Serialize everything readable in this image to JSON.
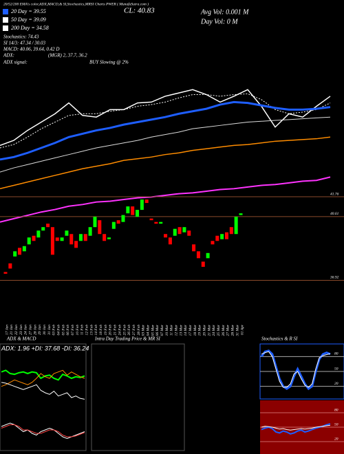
{
  "header": {
    "title": "20/52/200 EMA's color,ADX,MACD,& SI,Stochastics,MRSI Charts PWER ( MunafaSutra.com )",
    "legend": [
      {
        "text": "20 Day = 39.55",
        "color": "#1e5eff"
      },
      {
        "text": "50 Day = 39.09",
        "color": "#ffffff"
      },
      {
        "text": "200 Day = 34.58",
        "color": "#ffffff"
      }
    ],
    "stats": [
      "Stochastics: 74.43",
      "SI 14/3: 47.34 / 30.03",
      "MACD: 40.06, 39.64, 0.42 D"
    ],
    "adx_label": "ADX:",
    "adx_value": "(MGR) 2, 37.7, 36.2",
    "signal_label": "ADX signal:",
    "signal_value": "BUY Slowing @ 2%",
    "close": "CL: 40.83",
    "avg_vol": "Avg Vol: 0.001 M",
    "day_vol": "Day Vol: 0  M"
  },
  "chart_data": [
    {
      "type": "line",
      "ylim": [
        25,
        44
      ],
      "series": [
        {
          "color": "#ffffff",
          "line_width": 1.5,
          "values": [
            34.8,
            35.4,
            36.6,
            37.6,
            38.6,
            39.9,
            38.4,
            38.2,
            39.1,
            39.1,
            39.9,
            40.0,
            40.7,
            41.1,
            41.5,
            40.9,
            40.0,
            40.7,
            41.5,
            39.5,
            37.0,
            38.6,
            38.2,
            39.5,
            40.7
          ]
        },
        {
          "color": "#ffffff",
          "line_width": 1,
          "dash": true,
          "values": [
            34.5,
            34.9,
            35.8,
            36.8,
            37.6,
            38.4,
            38.6,
            38.6,
            38.9,
            39.1,
            39.5,
            39.7,
            40.0,
            40.5,
            40.9,
            40.9,
            40.7,
            40.9,
            41.0,
            40.3,
            39.1,
            38.6,
            38.8,
            39.1,
            39.9
          ]
        },
        {
          "color": "#1e5eff",
          "line_width": 3,
          "values": [
            33.1,
            33.4,
            33.9,
            34.5,
            35.1,
            35.8,
            36.2,
            36.6,
            36.9,
            37.3,
            37.6,
            37.9,
            38.2,
            38.6,
            38.9,
            39.2,
            39.7,
            40.0,
            39.9,
            39.6,
            39.3,
            39.1,
            39.1,
            39.2,
            39.4
          ]
        },
        {
          "color": "#dddddd",
          "line_width": 1,
          "values": [
            31.6,
            32.1,
            32.5,
            32.9,
            33.3,
            33.7,
            34.1,
            34.5,
            34.8,
            35.1,
            35.4,
            35.8,
            36.1,
            36.4,
            36.8,
            37.0,
            37.2,
            37.4,
            37.6,
            37.7,
            37.8,
            37.9,
            38.0,
            38.1,
            38.2
          ]
        },
        {
          "color": "#ff8c00",
          "line_width": 1.5,
          "values": [
            29.6,
            30.0,
            30.4,
            30.8,
            31.2,
            31.6,
            32.0,
            32.3,
            32.6,
            33.0,
            33.2,
            33.4,
            33.7,
            33.9,
            34.2,
            34.4,
            34.6,
            34.8,
            34.9,
            35.1,
            35.3,
            35.4,
            35.5,
            35.6,
            35.8
          ]
        },
        {
          "color": "#ff33ff",
          "line_width": 2,
          "values": [
            25.6,
            26.0,
            26.4,
            26.8,
            27.1,
            27.5,
            27.7,
            28.0,
            28.1,
            28.3,
            28.5,
            28.6,
            28.8,
            29.0,
            29.1,
            29.3,
            29.5,
            29.6,
            29.8,
            30.0,
            30.1,
            30.3,
            30.5,
            30.6,
            31.0
          ]
        }
      ]
    },
    {
      "type": "candlestick",
      "up_color": "#00ff00",
      "down_color": "#ff0000",
      "tick_color": "#8b4a2b",
      "ylim": [
        36.5,
        42
      ],
      "yticks": [
        41.76,
        40.61,
        36.92
      ],
      "categories": [
        "17 Jan",
        "21 Jan",
        "22 Jan",
        "23 Jan",
        "24 Jan",
        "27 Jan",
        "28 Jan",
        "29 Jan",
        "30 Jan",
        "31 Jan",
        "03 Feb",
        "04 Feb",
        "05 Feb",
        "06 Feb",
        "07 Feb",
        "10 Feb",
        "11 Feb",
        "12 Feb",
        "13 Feb",
        "14 Feb",
        "18 Feb",
        "19 Feb",
        "20 Feb",
        "21 Feb",
        "24 Feb",
        "25 Feb",
        "26 Feb",
        "27 Feb",
        "28 Feb",
        "03 Mar",
        "04 Mar",
        "05 Mar",
        "06 Mar",
        "07 Mar",
        "10 Mar",
        "11 Mar",
        "12 Mar",
        "13 Mar",
        "14 Mar",
        "17 Mar",
        "18 Mar",
        "19 Mar",
        "20 Mar",
        "21 Mar",
        "24 Mar",
        "25 Mar",
        "26 Mar",
        "27 Mar",
        "28 Mar",
        "31 Mar",
        "01 Apr"
      ],
      "open": [
        37.4,
        37.9,
        38.3,
        38.8,
        38.6,
        39.0,
        39.5,
        39.4,
        39.8,
        40.2,
        40.0,
        39.4,
        39.2,
        39.5,
        39.6,
        39.2,
        39.2,
        39.6,
        39.5,
        40.0,
        40.4,
        39.6,
        39.3,
        39.9,
        40.4,
        40.3,
        40.8,
        41.2,
        40.6,
        41.0,
        41.6,
        40.5,
        40.3,
        40.2,
        39.6,
        39.4,
        39.5,
        40.0,
        39.7,
        39.8,
        39.0,
        38.6,
        38.0,
        38.2,
        39.2,
        39.5,
        39.3,
        39.7,
        40.0,
        39.6,
        40.7
      ],
      "close": [
        37.3,
        37.6,
        38.6,
        38.4,
        38.9,
        39.4,
        39.2,
        39.8,
        40.0,
        40.0,
        38.4,
        39.2,
        39.4,
        39.8,
        39.0,
        38.8,
        39.6,
        39.2,
        40.0,
        40.6,
        39.6,
        39.2,
        39.4,
        40.3,
        40.2,
        40.7,
        41.2,
        40.7,
        41.0,
        41.6,
        41.4,
        40.4,
        40.2,
        40.3,
        39.4,
        39.0,
        39.9,
        39.6,
        40.0,
        39.5,
        38.6,
        38.2,
        37.7,
        38.5,
        39.0,
        39.2,
        39.6,
        39.3,
        39.6,
        40.6,
        40.8
      ]
    },
    {
      "type": "line",
      "title": "ADX  & MACD",
      "annotation": "ADX: 1.96  +DI: 37.68  -DI: 36.24",
      "ylim": [
        0,
        60
      ],
      "series": [
        {
          "color": "#00ff00",
          "line_width": 2,
          "values": [
            38,
            40,
            36,
            35,
            37,
            38,
            36,
            38,
            37,
            30,
            33,
            34,
            30,
            28,
            35,
            33,
            30,
            32,
            31,
            33
          ]
        },
        {
          "color": "#ff8c00",
          "line_width": 1,
          "values": [
            20,
            22,
            25,
            28,
            26,
            24,
            22,
            25,
            30,
            36,
            32,
            30,
            36,
            38,
            40,
            34,
            38,
            35,
            32,
            30
          ]
        },
        {
          "color": "#ffffff",
          "line_width": 1,
          "values": [
            25,
            24,
            22,
            20,
            18,
            16,
            18,
            20,
            22,
            15,
            12,
            10,
            14,
            8,
            10,
            12,
            6,
            8,
            5,
            4
          ]
        }
      ]
    },
    {
      "type": "line",
      "ylim": [
        -1,
        1
      ],
      "series": [
        {
          "color": "#ffffff",
          "line_width": 1,
          "values": [
            0.4,
            0.5,
            0.6,
            0.5,
            0.3,
            0.1,
            0.2,
            0.0,
            -0.1,
            0.1,
            0.2,
            0.3,
            0.2,
            0.0,
            -0.2,
            -0.3,
            -0.2,
            -0.1,
            0.0,
            0.1
          ]
        },
        {
          "color": "#ff4444",
          "line_width": 1,
          "values": [
            0.3,
            0.4,
            0.5,
            0.5,
            0.4,
            0.2,
            0.2,
            0.1,
            0.0,
            0.0,
            0.1,
            0.2,
            0.2,
            0.1,
            -0.1,
            -0.2,
            -0.2,
            -0.15,
            -0.05,
            0.05
          ]
        }
      ]
    },
    {
      "type": "line",
      "title": "Intra Day Trading Price  & MR    SI"
    },
    {
      "type": "line",
      "title": "Stochastics & R       SI",
      "ylim": [
        0,
        100
      ],
      "yticks": [
        80,
        50,
        20
      ],
      "tick_color": "#aaaaaa",
      "series": [
        {
          "color": "#1e5eff",
          "line_width": 3,
          "values": [
            80,
            90,
            92,
            85,
            60,
            35,
            20,
            15,
            20,
            40,
            55,
            40,
            25,
            15,
            20,
            50,
            75,
            85,
            88,
            85
          ]
        },
        {
          "color": "#ffffff",
          "line_width": 1,
          "values": [
            85,
            88,
            90,
            80,
            55,
            30,
            18,
            18,
            25,
            45,
            50,
            35,
            22,
            18,
            25,
            55,
            78,
            82,
            84,
            86
          ]
        }
      ]
    },
    {
      "type": "line",
      "ylim": [
        0,
        100
      ],
      "yticks": [
        80,
        50,
        20
      ],
      "tick_color": "#cc6666",
      "series": [
        {
          "color": "#1e5eff",
          "line_width": 2,
          "values": [
            45,
            48,
            50,
            47,
            40,
            38,
            42,
            40,
            36,
            38,
            42,
            44,
            40,
            42,
            45,
            48,
            50,
            52,
            55,
            57
          ]
        },
        {
          "color": "#ffffff",
          "line_width": 1,
          "values": [
            50,
            52,
            51,
            50,
            48,
            46,
            47,
            45,
            44,
            45,
            46,
            47,
            46,
            47,
            48,
            50,
            51,
            52,
            53,
            54
          ]
        }
      ]
    }
  ]
}
